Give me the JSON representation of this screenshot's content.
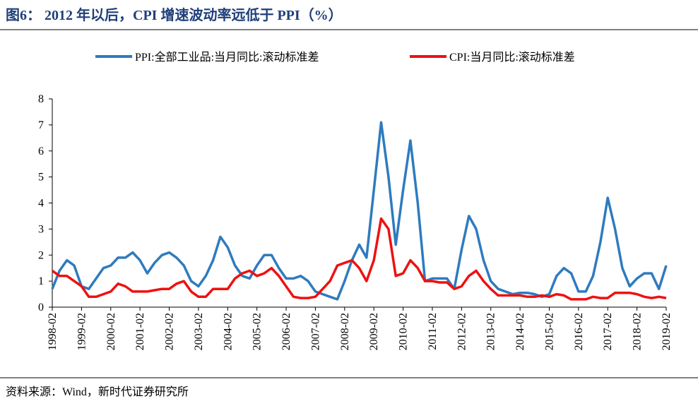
{
  "chart_data": {
    "type": "line",
    "title": "图6： 2012 年以后，CPI 增速波动率远低于 PPI（%）",
    "source": "资料来源：Wind，新时代证券研究所",
    "categories": [
      "1998-02",
      null,
      null,
      null,
      "1999-02",
      null,
      null,
      null,
      "2000-02",
      null,
      null,
      null,
      "2001-02",
      null,
      null,
      null,
      "2002-02",
      null,
      null,
      null,
      "2003-02",
      null,
      null,
      null,
      "2004-02",
      null,
      null,
      null,
      "2005-02",
      null,
      null,
      null,
      "2006-02",
      null,
      null,
      null,
      "2007-02",
      null,
      null,
      null,
      "2008-02",
      null,
      null,
      null,
      "2009-02",
      null,
      null,
      null,
      "2010-02",
      null,
      null,
      null,
      "2011-02",
      null,
      null,
      null,
      "2012-02",
      null,
      null,
      null,
      "2013-02",
      null,
      null,
      null,
      "2014-02",
      null,
      null,
      null,
      "2015-02",
      null,
      null,
      null,
      "2016-02",
      null,
      null,
      null,
      "2017-02",
      null,
      null,
      null,
      "2018-02",
      null,
      null,
      null,
      "2019-02"
    ],
    "series": [
      {
        "name": "PPI:全部工业品:当月同比:滚动标准差",
        "color": "#2e7bbf",
        "values": [
          0.7,
          1.4,
          1.8,
          1.6,
          0.8,
          0.7,
          1.1,
          1.5,
          1.6,
          1.9,
          1.9,
          2.1,
          1.8,
          1.3,
          1.7,
          2.0,
          2.1,
          1.9,
          1.6,
          1.0,
          0.8,
          1.2,
          1.8,
          2.7,
          2.3,
          1.6,
          1.2,
          1.1,
          1.6,
          2.0,
          2.0,
          1.5,
          1.1,
          1.1,
          1.2,
          1.0,
          0.6,
          0.5,
          0.4,
          0.3,
          1.0,
          1.8,
          2.4,
          1.9,
          4.5,
          7.1,
          5.0,
          2.4,
          4.5,
          6.4,
          4.0,
          1.0,
          1.1,
          1.1,
          1.1,
          0.7,
          2.2,
          3.5,
          3.0,
          1.8,
          1.0,
          0.7,
          0.6,
          0.5,
          0.55,
          0.55,
          0.5,
          0.4,
          0.5,
          1.2,
          1.5,
          1.3,
          0.6,
          0.6,
          1.2,
          2.5,
          4.2,
          3.0,
          1.5,
          0.8,
          1.1,
          1.3,
          1.3,
          0.7,
          1.6
        ]
      },
      {
        "name": "CPI:当月同比:滚动标准差",
        "color": "#ee1111",
        "values": [
          1.4,
          1.2,
          1.2,
          1.0,
          0.8,
          0.4,
          0.4,
          0.5,
          0.6,
          0.9,
          0.8,
          0.6,
          0.6,
          0.6,
          0.65,
          0.7,
          0.7,
          0.9,
          1.0,
          0.6,
          0.4,
          0.4,
          0.7,
          0.7,
          0.7,
          1.1,
          1.3,
          1.4,
          1.2,
          1.3,
          1.5,
          1.2,
          0.8,
          0.4,
          0.35,
          0.35,
          0.4,
          0.7,
          1.0,
          1.6,
          1.7,
          1.8,
          1.5,
          1.0,
          1.8,
          3.4,
          3.0,
          1.2,
          1.3,
          1.8,
          1.5,
          1.0,
          1.0,
          0.95,
          0.95,
          0.7,
          0.8,
          1.2,
          1.4,
          1.0,
          0.7,
          0.45,
          0.45,
          0.45,
          0.45,
          0.4,
          0.4,
          0.45,
          0.4,
          0.5,
          0.45,
          0.3,
          0.3,
          0.3,
          0.4,
          0.35,
          0.35,
          0.55,
          0.55,
          0.55,
          0.5,
          0.4,
          0.35,
          0.4,
          0.35
        ]
      }
    ],
    "ylim": [
      0,
      8
    ],
    "yticks": [
      0,
      1,
      2,
      3,
      4,
      5,
      6,
      7,
      8
    ],
    "grid": false,
    "legend": "top"
  }
}
